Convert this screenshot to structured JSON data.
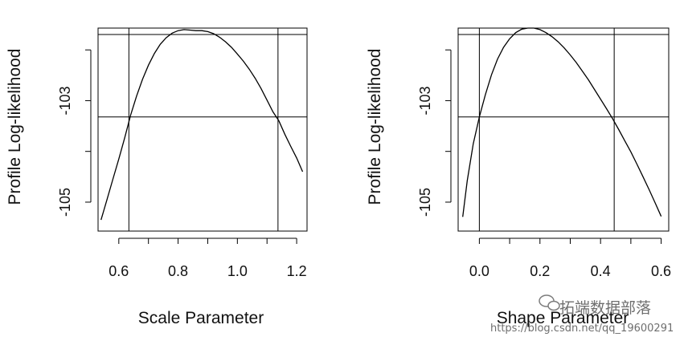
{
  "chart_data": [
    {
      "type": "line",
      "xlabel": "Scale Parameter",
      "ylabel": "Profile Log-likelihood",
      "xlim": [
        0.53,
        1.235
      ],
      "ylim": [
        -105.57,
        -101.57
      ],
      "xticks": [
        0.6,
        0.7,
        0.8,
        0.9,
        1.0,
        1.1,
        1.2
      ],
      "xtick_labels": [
        "0.6",
        "",
        "0.8",
        "",
        "1.0",
        "",
        "1.2"
      ],
      "yticks": [
        -102,
        -103,
        -104,
        -105
      ],
      "ytick_labels": [
        "",
        "-103",
        "",
        "-105"
      ],
      "grid": false,
      "series": [
        {
          "x": [
            0.54,
            0.56,
            0.58,
            0.6,
            0.62,
            0.64,
            0.66,
            0.68,
            0.7,
            0.72,
            0.74,
            0.76,
            0.78,
            0.8,
            0.82,
            0.84,
            0.86,
            0.88,
            0.9,
            0.92,
            0.94,
            0.96,
            0.98,
            1.0,
            1.02,
            1.04,
            1.06,
            1.08,
            1.1,
            1.12,
            1.14,
            1.16,
            1.18,
            1.2,
            1.22
          ],
          "y": [
            -105.35,
            -104.95,
            -104.55,
            -104.15,
            -103.73,
            -103.28,
            -102.91,
            -102.58,
            -102.3,
            -102.07,
            -101.89,
            -101.76,
            -101.67,
            -101.62,
            -101.6,
            -101.61,
            -101.62,
            -101.62,
            -101.64,
            -101.68,
            -101.75,
            -101.84,
            -101.95,
            -102.08,
            -102.22,
            -102.38,
            -102.56,
            -102.76,
            -102.99,
            -103.22,
            -103.4,
            -103.66,
            -103.9,
            -104.13,
            -104.4
          ]
        }
      ],
      "mle_line_y": -101.57,
      "ci_line_y": -103.32,
      "ci_x": [
        0.634,
        1.137
      ]
    },
    {
      "type": "line",
      "xlabel": "Shape Parameter",
      "ylabel": "Profile Log-likelihood",
      "xlim": [
        -0.07,
        0.625
      ],
      "ylim": [
        -105.57,
        -101.57
      ],
      "xticks": [
        0.0,
        0.1,
        0.2,
        0.3,
        0.4,
        0.5,
        0.6
      ],
      "xtick_labels": [
        "0.0",
        "",
        "0.2",
        "",
        "0.4",
        "",
        "0.6"
      ],
      "yticks": [
        -102,
        -103,
        -104,
        -105
      ],
      "ytick_labels": [
        "",
        "-103",
        "",
        "-105"
      ],
      "grid": false,
      "series": [
        {
          "x": [
            -0.055,
            -0.04,
            -0.02,
            0.0,
            0.02,
            0.04,
            0.06,
            0.08,
            0.1,
            0.12,
            0.14,
            0.16,
            0.18,
            0.2,
            0.22,
            0.24,
            0.26,
            0.28,
            0.3,
            0.32,
            0.34,
            0.36,
            0.38,
            0.4,
            0.42,
            0.44,
            0.46,
            0.48,
            0.5,
            0.52,
            0.54,
            0.56,
            0.58,
            0.6
          ],
          "y": [
            -105.29,
            -104.58,
            -103.85,
            -103.32,
            -102.88,
            -102.49,
            -102.18,
            -101.95,
            -101.78,
            -101.66,
            -101.59,
            -101.57,
            -101.57,
            -101.6,
            -101.66,
            -101.74,
            -101.84,
            -101.96,
            -102.1,
            -102.25,
            -102.42,
            -102.59,
            -102.78,
            -102.97,
            -103.16,
            -103.36,
            -103.57,
            -103.79,
            -104.01,
            -104.25,
            -104.5,
            -104.75,
            -105.01,
            -105.28
          ]
        }
      ],
      "mle_line_y": -101.57,
      "ci_line_y": -103.32,
      "ci_x": [
        0.0,
        0.445
      ]
    }
  ],
  "watermark": {
    "brand_text": "拓端数据部落",
    "url_text": "https://blog.csdn.net/qq_19600291",
    "icon": "wechat-bubble-icon"
  }
}
